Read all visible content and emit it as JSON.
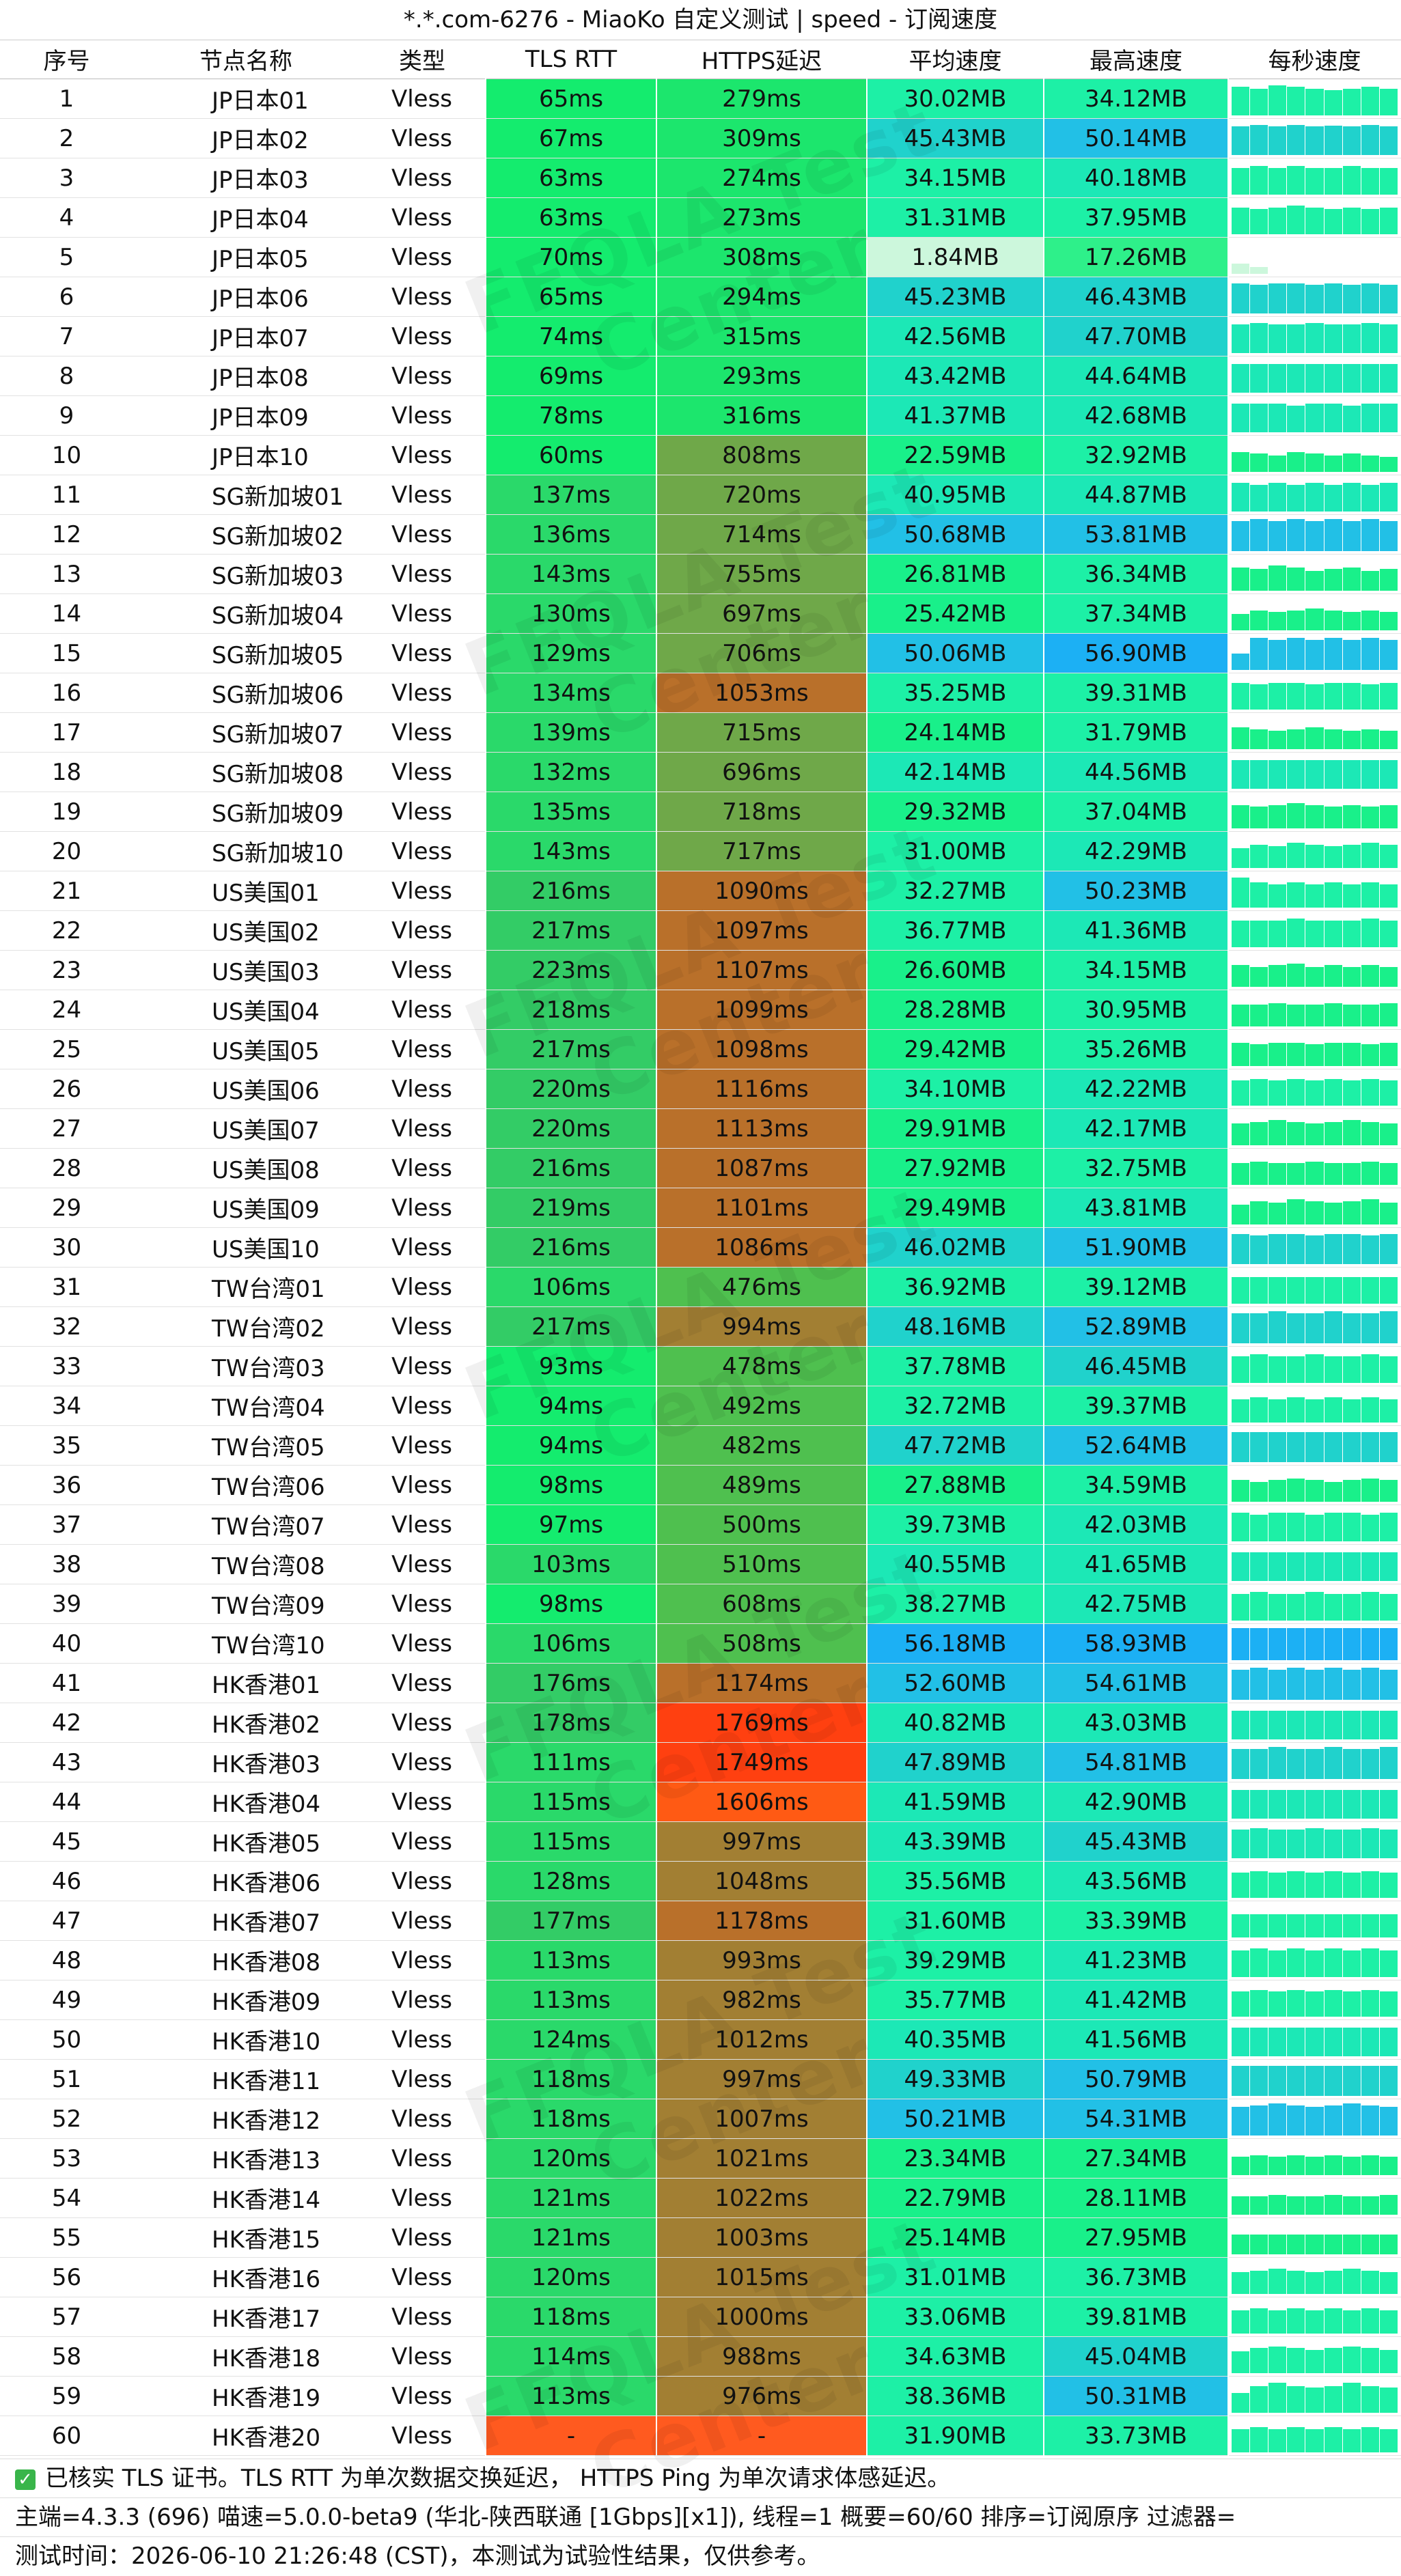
{
  "title": "*.*.com-6276 - MiaoKo 自定义测试 | speed - 订阅速度",
  "headers": [
    "序号",
    "节点名称",
    "类型",
    "TLS RTT",
    "HTTPS延迟",
    "平均速度",
    "最高速度",
    "每秒速度"
  ],
  "watermark": "FFQLA Test Center",
  "rows": [
    {
      "no": "1",
      "name": "JP日本01",
      "type": "Vless",
      "tls": "65ms",
      "https": "279ms",
      "avg": "30.02MB",
      "max": "34.12MB",
      "spark": [
        0.85,
        0.8,
        0.9,
        0.85,
        0.8,
        0.75,
        0.8,
        0.85,
        0.8
      ]
    },
    {
      "no": "2",
      "name": "JP日本02",
      "type": "Vless",
      "tls": "67ms",
      "https": "309ms",
      "avg": "45.43MB",
      "max": "50.14MB",
      "spark": [
        0.85,
        0.9,
        0.85,
        0.9,
        0.85,
        0.88,
        0.85,
        0.9,
        0.85
      ]
    },
    {
      "no": "3",
      "name": "JP日本03",
      "type": "Vless",
      "tls": "63ms",
      "https": "274ms",
      "avg": "34.15MB",
      "max": "40.18MB",
      "spark": [
        0.8,
        0.85,
        0.8,
        0.85,
        0.8,
        0.8,
        0.85,
        0.8,
        0.8
      ]
    },
    {
      "no": "4",
      "name": "JP日本04",
      "type": "Vless",
      "tls": "63ms",
      "https": "273ms",
      "avg": "31.31MB",
      "max": "37.95MB",
      "spark": [
        0.8,
        0.75,
        0.8,
        0.85,
        0.8,
        0.75,
        0.8,
        0.75,
        0.8
      ]
    },
    {
      "no": "5",
      "name": "JP日本05",
      "type": "Vless",
      "tls": "70ms",
      "https": "308ms",
      "avg": "1.84MB",
      "max": "17.26MB",
      "spark": [
        0.3,
        0.2,
        0,
        0,
        0,
        0,
        0,
        0,
        0
      ]
    },
    {
      "no": "6",
      "name": "JP日本06",
      "type": "Vless",
      "tls": "65ms",
      "https": "294ms",
      "avg": "45.23MB",
      "max": "46.43MB",
      "spark": [
        0.9,
        0.85,
        0.9,
        0.9,
        0.85,
        0.9,
        0.85,
        0.9,
        0.85
      ]
    },
    {
      "no": "7",
      "name": "JP日本07",
      "type": "Vless",
      "tls": "74ms",
      "https": "315ms",
      "avg": "42.56MB",
      "max": "47.70MB",
      "spark": [
        0.85,
        0.9,
        0.85,
        0.85,
        0.9,
        0.85,
        0.85,
        0.9,
        0.85
      ]
    },
    {
      "no": "8",
      "name": "JP日本08",
      "type": "Vless",
      "tls": "69ms",
      "https": "293ms",
      "avg": "43.42MB",
      "max": "44.64MB",
      "spark": [
        0.85,
        0.85,
        0.85,
        0.85,
        0.85,
        0.85,
        0.85,
        0.85,
        0.85
      ]
    },
    {
      "no": "9",
      "name": "JP日本09",
      "type": "Vless",
      "tls": "78ms",
      "https": "316ms",
      "avg": "41.37MB",
      "max": "42.68MB",
      "spark": [
        0.85,
        0.85,
        0.85,
        0.8,
        0.85,
        0.85,
        0.8,
        0.85,
        0.85
      ]
    },
    {
      "no": "10",
      "name": "JP日本10",
      "type": "Vless",
      "tls": "60ms",
      "https": "808ms",
      "avg": "22.59MB",
      "max": "32.92MB",
      "spark": [
        0.6,
        0.55,
        0.5,
        0.6,
        0.55,
        0.5,
        0.55,
        0.5,
        0.45
      ]
    },
    {
      "no": "11",
      "name": "SG新加坡01",
      "type": "Vless",
      "tls": "137ms",
      "https": "720ms",
      "avg": "40.95MB",
      "max": "44.87MB",
      "spark": [
        0.85,
        0.8,
        0.85,
        0.8,
        0.85,
        0.8,
        0.85,
        0.8,
        0.85
      ]
    },
    {
      "no": "12",
      "name": "SG新加坡02",
      "type": "Vless",
      "tls": "136ms",
      "https": "714ms",
      "avg": "50.68MB",
      "max": "53.81MB",
      "spark": [
        0.9,
        0.95,
        0.9,
        0.95,
        0.9,
        0.95,
        0.9,
        0.95,
        0.9
      ]
    },
    {
      "no": "13",
      "name": "SG新加坡03",
      "type": "Vless",
      "tls": "143ms",
      "https": "755ms",
      "avg": "26.81MB",
      "max": "36.34MB",
      "spark": [
        0.7,
        0.65,
        0.75,
        0.7,
        0.6,
        0.65,
        0.7,
        0.6,
        0.65
      ]
    },
    {
      "no": "14",
      "name": "SG新加坡04",
      "type": "Vless",
      "tls": "130ms",
      "https": "697ms",
      "avg": "25.42MB",
      "max": "37.34MB",
      "spark": [
        0.5,
        0.6,
        0.55,
        0.6,
        0.65,
        0.6,
        0.55,
        0.6,
        0.55
      ]
    },
    {
      "no": "15",
      "name": "SG新加坡05",
      "type": "Vless",
      "tls": "129ms",
      "https": "706ms",
      "avg": "50.06MB",
      "max": "56.90MB",
      "spark": [
        0.5,
        0.95,
        0.9,
        0.95,
        0.9,
        0.95,
        0.9,
        0.95,
        0.9
      ]
    },
    {
      "no": "16",
      "name": "SG新加坡06",
      "type": "Vless",
      "tls": "134ms",
      "https": "1053ms",
      "avg": "35.25MB",
      "max": "39.31MB",
      "spark": [
        0.8,
        0.75,
        0.8,
        0.8,
        0.75,
        0.8,
        0.8,
        0.75,
        0.8
      ]
    },
    {
      "no": "17",
      "name": "SG新加坡07",
      "type": "Vless",
      "tls": "139ms",
      "https": "715ms",
      "avg": "24.14MB",
      "max": "31.79MB",
      "spark": [
        0.65,
        0.6,
        0.55,
        0.6,
        0.65,
        0.6,
        0.55,
        0.6,
        0.55
      ]
    },
    {
      "no": "18",
      "name": "SG新加坡08",
      "type": "Vless",
      "tls": "132ms",
      "https": "696ms",
      "avg": "42.14MB",
      "max": "44.56MB",
      "spark": [
        0.85,
        0.85,
        0.85,
        0.85,
        0.85,
        0.85,
        0.85,
        0.85,
        0.85
      ]
    },
    {
      "no": "19",
      "name": "SG新加坡09",
      "type": "Vless",
      "tls": "135ms",
      "https": "718ms",
      "avg": "29.32MB",
      "max": "37.04MB",
      "spark": [
        0.7,
        0.65,
        0.7,
        0.75,
        0.7,
        0.65,
        0.7,
        0.65,
        0.7
      ]
    },
    {
      "no": "20",
      "name": "SG新加坡10",
      "type": "Vless",
      "tls": "143ms",
      "https": "717ms",
      "avg": "31.00MB",
      "max": "42.29MB",
      "spark": [
        0.6,
        0.7,
        0.65,
        0.75,
        0.7,
        0.65,
        0.7,
        0.75,
        0.7
      ]
    },
    {
      "no": "21",
      "name": "US美国01",
      "type": "Vless",
      "tls": "216ms",
      "https": "1090ms",
      "avg": "32.27MB",
      "max": "50.23MB",
      "spark": [
        0.9,
        0.75,
        0.7,
        0.75,
        0.7,
        0.75,
        0.7,
        0.75,
        0.7
      ]
    },
    {
      "no": "22",
      "name": "US美国02",
      "type": "Vless",
      "tls": "217ms",
      "https": "1097ms",
      "avg": "36.77MB",
      "max": "41.36MB",
      "spark": [
        0.8,
        0.8,
        0.8,
        0.85,
        0.8,
        0.8,
        0.8,
        0.85,
        0.8
      ]
    },
    {
      "no": "23",
      "name": "US美国03",
      "type": "Vless",
      "tls": "223ms",
      "https": "1107ms",
      "avg": "26.60MB",
      "max": "34.15MB",
      "spark": [
        0.65,
        0.6,
        0.65,
        0.7,
        0.6,
        0.65,
        0.6,
        0.65,
        0.6
      ]
    },
    {
      "no": "24",
      "name": "US美国04",
      "type": "Vless",
      "tls": "218ms",
      "https": "1099ms",
      "avg": "28.28MB",
      "max": "30.95MB",
      "spark": [
        0.65,
        0.65,
        0.7,
        0.65,
        0.65,
        0.7,
        0.65,
        0.65,
        0.7
      ]
    },
    {
      "no": "25",
      "name": "US美国05",
      "type": "Vless",
      "tls": "217ms",
      "https": "1098ms",
      "avg": "29.42MB",
      "max": "35.26MB",
      "spark": [
        0.7,
        0.65,
        0.7,
        0.7,
        0.65,
        0.7,
        0.7,
        0.65,
        0.7
      ]
    },
    {
      "no": "26",
      "name": "US美国06",
      "type": "Vless",
      "tls": "220ms",
      "https": "1116ms",
      "avg": "34.10MB",
      "max": "42.22MB",
      "spark": [
        0.75,
        0.8,
        0.75,
        0.8,
        0.75,
        0.8,
        0.75,
        0.8,
        0.75
      ]
    },
    {
      "no": "27",
      "name": "US美国07",
      "type": "Vless",
      "tls": "220ms",
      "https": "1113ms",
      "avg": "29.91MB",
      "max": "42.17MB",
      "spark": [
        0.65,
        0.7,
        0.75,
        0.7,
        0.65,
        0.7,
        0.75,
        0.7,
        0.65
      ]
    },
    {
      "no": "28",
      "name": "US美国08",
      "type": "Vless",
      "tls": "216ms",
      "https": "1087ms",
      "avg": "27.92MB",
      "max": "32.75MB",
      "spark": [
        0.65,
        0.7,
        0.65,
        0.65,
        0.7,
        0.65,
        0.65,
        0.7,
        0.65
      ]
    },
    {
      "no": "29",
      "name": "US美国09",
      "type": "Vless",
      "tls": "219ms",
      "https": "1101ms",
      "avg": "29.49MB",
      "max": "43.81MB",
      "spark": [
        0.6,
        0.7,
        0.65,
        0.75,
        0.7,
        0.65,
        0.7,
        0.75,
        0.65
      ]
    },
    {
      "no": "30",
      "name": "US美国10",
      "type": "Vless",
      "tls": "216ms",
      "https": "1086ms",
      "avg": "46.02MB",
      "max": "51.90MB",
      "spark": [
        0.9,
        0.85,
        0.9,
        0.9,
        0.85,
        0.9,
        0.9,
        0.85,
        0.9
      ]
    },
    {
      "no": "31",
      "name": "TW台湾01",
      "type": "Vless",
      "tls": "106ms",
      "https": "476ms",
      "avg": "36.92MB",
      "max": "39.12MB",
      "spark": [
        0.8,
        0.8,
        0.8,
        0.8,
        0.8,
        0.8,
        0.8,
        0.8,
        0.8
      ]
    },
    {
      "no": "32",
      "name": "TW台湾02",
      "type": "Vless",
      "tls": "217ms",
      "https": "994ms",
      "avg": "48.16MB",
      "max": "52.89MB",
      "spark": [
        0.9,
        0.9,
        0.95,
        0.9,
        0.9,
        0.95,
        0.9,
        0.9,
        0.95
      ]
    },
    {
      "no": "33",
      "name": "TW台湾03",
      "type": "Vless",
      "tls": "93ms",
      "https": "478ms",
      "avg": "37.78MB",
      "max": "46.45MB",
      "spark": [
        0.8,
        0.85,
        0.8,
        0.8,
        0.85,
        0.8,
        0.8,
        0.85,
        0.8
      ]
    },
    {
      "no": "34",
      "name": "TW台湾04",
      "type": "Vless",
      "tls": "94ms",
      "https": "492ms",
      "avg": "32.72MB",
      "max": "39.37MB",
      "spark": [
        0.7,
        0.75,
        0.7,
        0.75,
        0.7,
        0.75,
        0.7,
        0.75,
        0.7
      ]
    },
    {
      "no": "35",
      "name": "TW台湾05",
      "type": "Vless",
      "tls": "94ms",
      "https": "482ms",
      "avg": "47.72MB",
      "max": "52.64MB",
      "spark": [
        0.9,
        0.9,
        0.9,
        0.9,
        0.9,
        0.9,
        0.9,
        0.9,
        0.9
      ]
    },
    {
      "no": "36",
      "name": "TW台湾06",
      "type": "Vless",
      "tls": "98ms",
      "https": "489ms",
      "avg": "27.88MB",
      "max": "34.59MB",
      "spark": [
        0.65,
        0.6,
        0.65,
        0.7,
        0.65,
        0.6,
        0.65,
        0.7,
        0.65
      ]
    },
    {
      "no": "37",
      "name": "TW台湾07",
      "type": "Vless",
      "tls": "97ms",
      "https": "500ms",
      "avg": "39.73MB",
      "max": "42.03MB",
      "spark": [
        0.85,
        0.8,
        0.85,
        0.85,
        0.8,
        0.85,
        0.85,
        0.8,
        0.85
      ]
    },
    {
      "no": "38",
      "name": "TW台湾08",
      "type": "Vless",
      "tls": "103ms",
      "https": "510ms",
      "avg": "40.55MB",
      "max": "41.65MB",
      "spark": [
        0.85,
        0.85,
        0.85,
        0.85,
        0.85,
        0.85,
        0.85,
        0.85,
        0.85
      ]
    },
    {
      "no": "39",
      "name": "TW台湾09",
      "type": "Vless",
      "tls": "98ms",
      "https": "608ms",
      "avg": "38.27MB",
      "max": "42.75MB",
      "spark": [
        0.8,
        0.85,
        0.8,
        0.8,
        0.85,
        0.8,
        0.8,
        0.85,
        0.8
      ]
    },
    {
      "no": "40",
      "name": "TW台湾10",
      "type": "Vless",
      "tls": "106ms",
      "https": "508ms",
      "avg": "56.18MB",
      "max": "58.93MB",
      "spark": [
        0.95,
        0.95,
        0.95,
        0.95,
        0.95,
        0.95,
        0.95,
        0.95,
        0.95
      ]
    },
    {
      "no": "41",
      "name": "HK香港01",
      "type": "Vless",
      "tls": "176ms",
      "https": "1174ms",
      "avg": "52.60MB",
      "max": "54.61MB",
      "spark": [
        0.9,
        0.95,
        0.9,
        0.95,
        0.9,
        0.95,
        0.9,
        0.95,
        0.9
      ]
    },
    {
      "no": "42",
      "name": "HK香港02",
      "type": "Vless",
      "tls": "178ms",
      "https": "1769ms",
      "avg": "40.82MB",
      "max": "43.03MB",
      "spark": [
        0.85,
        0.85,
        0.85,
        0.85,
        0.85,
        0.85,
        0.85,
        0.85,
        0.85
      ]
    },
    {
      "no": "43",
      "name": "HK香港03",
      "type": "Vless",
      "tls": "111ms",
      "https": "1749ms",
      "avg": "47.89MB",
      "max": "54.81MB",
      "spark": [
        0.9,
        0.9,
        0.95,
        0.9,
        0.9,
        0.95,
        0.9,
        0.9,
        0.95
      ]
    },
    {
      "no": "44",
      "name": "HK香港04",
      "type": "Vless",
      "tls": "115ms",
      "https": "1606ms",
      "avg": "41.59MB",
      "max": "42.90MB",
      "spark": [
        0.85,
        0.85,
        0.85,
        0.85,
        0.85,
        0.85,
        0.85,
        0.85,
        0.85
      ]
    },
    {
      "no": "45",
      "name": "HK香港05",
      "type": "Vless",
      "tls": "115ms",
      "https": "997ms",
      "avg": "43.39MB",
      "max": "45.43MB",
      "spark": [
        0.85,
        0.9,
        0.85,
        0.85,
        0.9,
        0.85,
        0.85,
        0.9,
        0.85
      ]
    },
    {
      "no": "46",
      "name": "HK香港06",
      "type": "Vless",
      "tls": "128ms",
      "https": "1048ms",
      "avg": "35.56MB",
      "max": "43.56MB",
      "spark": [
        0.75,
        0.8,
        0.75,
        0.8,
        0.75,
        0.8,
        0.75,
        0.8,
        0.75
      ]
    },
    {
      "no": "47",
      "name": "HK香港07",
      "type": "Vless",
      "tls": "177ms",
      "https": "1178ms",
      "avg": "31.60MB",
      "max": "33.39MB",
      "spark": [
        0.7,
        0.7,
        0.7,
        0.7,
        0.7,
        0.7,
        0.7,
        0.7,
        0.7
      ]
    },
    {
      "no": "48",
      "name": "HK香港08",
      "type": "Vless",
      "tls": "113ms",
      "https": "993ms",
      "avg": "39.29MB",
      "max": "41.23MB",
      "spark": [
        0.8,
        0.85,
        0.8,
        0.85,
        0.8,
        0.85,
        0.8,
        0.85,
        0.8
      ]
    },
    {
      "no": "49",
      "name": "HK香港09",
      "type": "Vless",
      "tls": "113ms",
      "https": "982ms",
      "avg": "35.77MB",
      "max": "41.42MB",
      "spark": [
        0.75,
        0.8,
        0.75,
        0.8,
        0.75,
        0.8,
        0.75,
        0.8,
        0.75
      ]
    },
    {
      "no": "50",
      "name": "HK香港10",
      "type": "Vless",
      "tls": "124ms",
      "https": "1012ms",
      "avg": "40.35MB",
      "max": "41.56MB",
      "spark": [
        0.85,
        0.85,
        0.85,
        0.85,
        0.85,
        0.85,
        0.85,
        0.85,
        0.85
      ]
    },
    {
      "no": "51",
      "name": "HK香港11",
      "type": "Vless",
      "tls": "118ms",
      "https": "997ms",
      "avg": "49.33MB",
      "max": "50.79MB",
      "spark": [
        0.9,
        0.9,
        0.9,
        0.9,
        0.9,
        0.9,
        0.9,
        0.9,
        0.9
      ]
    },
    {
      "no": "52",
      "name": "HK香港12",
      "type": "Vless",
      "tls": "118ms",
      "https": "1007ms",
      "avg": "50.21MB",
      "max": "54.31MB",
      "spark": [
        0.85,
        0.9,
        0.95,
        0.9,
        0.85,
        0.9,
        0.95,
        0.9,
        0.85
      ]
    },
    {
      "no": "53",
      "name": "HK香港13",
      "type": "Vless",
      "tls": "120ms",
      "https": "1021ms",
      "avg": "23.34MB",
      "max": "27.34MB",
      "spark": [
        0.55,
        0.6,
        0.55,
        0.6,
        0.55,
        0.6,
        0.55,
        0.6,
        0.55
      ]
    },
    {
      "no": "54",
      "name": "HK香港14",
      "type": "Vless",
      "tls": "121ms",
      "https": "1022ms",
      "avg": "22.79MB",
      "max": "28.11MB",
      "spark": [
        0.55,
        0.55,
        0.6,
        0.55,
        0.55,
        0.6,
        0.55,
        0.55,
        0.6
      ]
    },
    {
      "no": "55",
      "name": "HK香港15",
      "type": "Vless",
      "tls": "121ms",
      "https": "1003ms",
      "avg": "25.14MB",
      "max": "27.95MB",
      "spark": [
        0.6,
        0.6,
        0.6,
        0.6,
        0.6,
        0.6,
        0.6,
        0.6,
        0.6
      ]
    },
    {
      "no": "56",
      "name": "HK香港16",
      "type": "Vless",
      "tls": "120ms",
      "https": "1015ms",
      "avg": "31.01MB",
      "max": "36.73MB",
      "spark": [
        0.65,
        0.7,
        0.75,
        0.7,
        0.65,
        0.7,
        0.75,
        0.7,
        0.65
      ]
    },
    {
      "no": "57",
      "name": "HK香港17",
      "type": "Vless",
      "tls": "118ms",
      "https": "1000ms",
      "avg": "33.06MB",
      "max": "39.81MB",
      "spark": [
        0.7,
        0.75,
        0.7,
        0.75,
        0.7,
        0.75,
        0.7,
        0.75,
        0.7
      ]
    },
    {
      "no": "58",
      "name": "HK香港18",
      "type": "Vless",
      "tls": "114ms",
      "https": "988ms",
      "avg": "34.63MB",
      "max": "45.04MB",
      "spark": [
        0.65,
        0.75,
        0.8,
        0.75,
        0.7,
        0.75,
        0.8,
        0.75,
        0.7
      ]
    },
    {
      "no": "59",
      "name": "HK香港19",
      "type": "Vless",
      "tls": "113ms",
      "https": "976ms",
      "avg": "38.36MB",
      "max": "50.31MB",
      "spark": [
        0.6,
        0.8,
        0.9,
        0.8,
        0.75,
        0.8,
        0.9,
        0.8,
        0.75
      ]
    },
    {
      "no": "60",
      "name": "HK香港20",
      "type": "Vless",
      "tls": "-",
      "https": "-",
      "avg": "31.90MB",
      "max": "33.73MB",
      "spark": [
        0.7,
        0.75,
        0.7,
        0.75,
        0.7,
        0.75,
        0.7,
        0.75,
        0.7
      ]
    }
  ],
  "footer": {
    "line1": "已核实 TLS 证书。TLS RTT 为单次数据交换延迟， HTTPS Ping 为单次请求体感延迟。",
    "line2": "主端=4.3.3 (696) 喵速=5.0.0-beta9 (华北-陕西联通 [1Gbps][x1]), 线程=1 概要=60/60 排序=订阅原序 过滤器=",
    "line3": "测试时间：2026-06-10 21:26:48 (CST)，本测试为试验性结果，仅供参考。"
  },
  "colors": {
    "fail": "#ff5a1f",
    "latency_good": "#17e870",
    "latency_mid": "#7fa84a",
    "latency_slow": "#b9742a",
    "latency_bad": "#ff4a10",
    "speed_low": "#ccffdd",
    "speed_mid": "#1cf0a0",
    "speed_high": "#22b6ff"
  }
}
